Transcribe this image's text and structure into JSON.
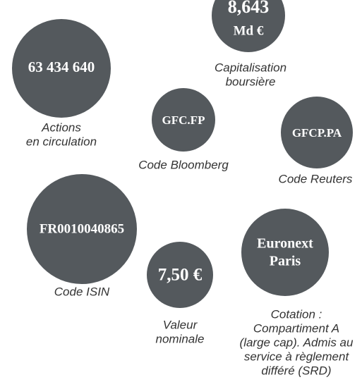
{
  "items": [
    {
      "value": [
        "8,643",
        "Md €"
      ],
      "label": [
        "Capitalisation",
        "boursière"
      ]
    },
    {
      "value": [
        "63 434 640"
      ],
      "label": [
        "Actions",
        "en circulation"
      ]
    },
    {
      "value": [
        "GFC.FP"
      ],
      "label": [
        "Code Bloomberg"
      ]
    },
    {
      "value": [
        "GFCP.PA"
      ],
      "label": [
        "Code Reuters"
      ]
    },
    {
      "value": [
        "FR0010040865"
      ],
      "label": [
        "Code ISIN"
      ]
    },
    {
      "value": [
        "7,50 €"
      ],
      "label": [
        "Valeur",
        "nominale"
      ]
    },
    {
      "value": [
        "Euronext",
        "Paris"
      ],
      "label": [
        "Cotation :",
        "Compartiment A",
        "(large cap). Admis au",
        "service à règlement",
        "différé (SRD)"
      ]
    }
  ]
}
